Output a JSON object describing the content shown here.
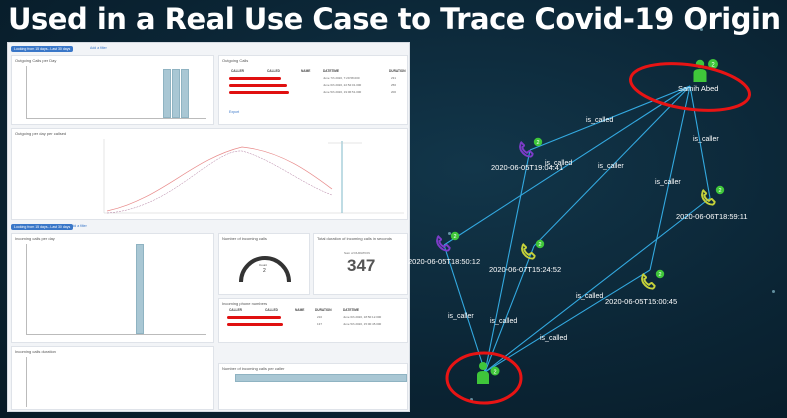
{
  "slide": {
    "title": "Used in a Real Use Case to Trace Covid-19 Origin"
  },
  "dashboard": {
    "top_filter": "Looking from 15 days...Last 30 days",
    "add_filter": "Add a filter",
    "bottom_filter": "Looking from 15 days...Last 30 days",
    "calls_per_day_title": "Outgoing Calls per Day",
    "outgoing_calls_title": "Outgoing Calls",
    "calls_by_timeslot_title": "Outgoing per day per callsed",
    "incoming_calls_title": "Incoming calls per day",
    "count_title": "Number of incoming calls",
    "count_label": "Count",
    "count_value": "2",
    "duration_title": "Total duration of incoming calls in seconds",
    "duration_label": "Sum of DURATION",
    "duration_value": "347",
    "incoming_table_title": "Incoming phone numbers",
    "calls_duration_title": "Incoming calls duration",
    "bottom_right_title": "Number of incoming calls per caller",
    "export_label": "Export",
    "table_headers": [
      "CALLER",
      "CALLED",
      "NAME",
      "DATETIME",
      "DURATION"
    ],
    "outgoing_rows": [
      {
        "datetime": "June 7th 2020, 7:29:58.000",
        "duration": "231"
      },
      {
        "datetime": "June 6th 2020, 22:52:01.000",
        "duration": "256"
      },
      {
        "datetime": "June 5th 2020, 19:06:51.000",
        "duration": "200"
      }
    ],
    "incoming_rows": [
      {
        "datetime": "June 6th 2020, 18:50:12.000",
        "duration": "210"
      },
      {
        "datetime": "June 5th 2020, 15:00:45.000",
        "duration": "137"
      }
    ]
  },
  "graph": {
    "person_top": {
      "label": "Samih Abed"
    },
    "person_bottom": {
      "label": ""
    },
    "call_nodes": [
      {
        "label": "2020-06-05T19:04:41",
        "color": "#7d3cc8"
      },
      {
        "label": "2020-06-06T18:59:11",
        "color": "#c6d23a"
      },
      {
        "label": "2020-06-05T18:50:12",
        "color": "#7d3cc8"
      },
      {
        "label": "2020-06-07T15:24:52",
        "color": "#c6d23a"
      },
      {
        "label": "2020-06-05T15:00:45",
        "color": "#c6d23a"
      }
    ],
    "edge_labels": [
      "is_called",
      "is_caller",
      "is_called",
      "is_caller",
      "is_caller",
      "is_called",
      "is_caller",
      "is_called",
      "is_called"
    ],
    "badge_count": "2",
    "colors": {
      "edge": "#33a9e0",
      "person": "#3fc63a",
      "highlight": "#e81414"
    }
  }
}
